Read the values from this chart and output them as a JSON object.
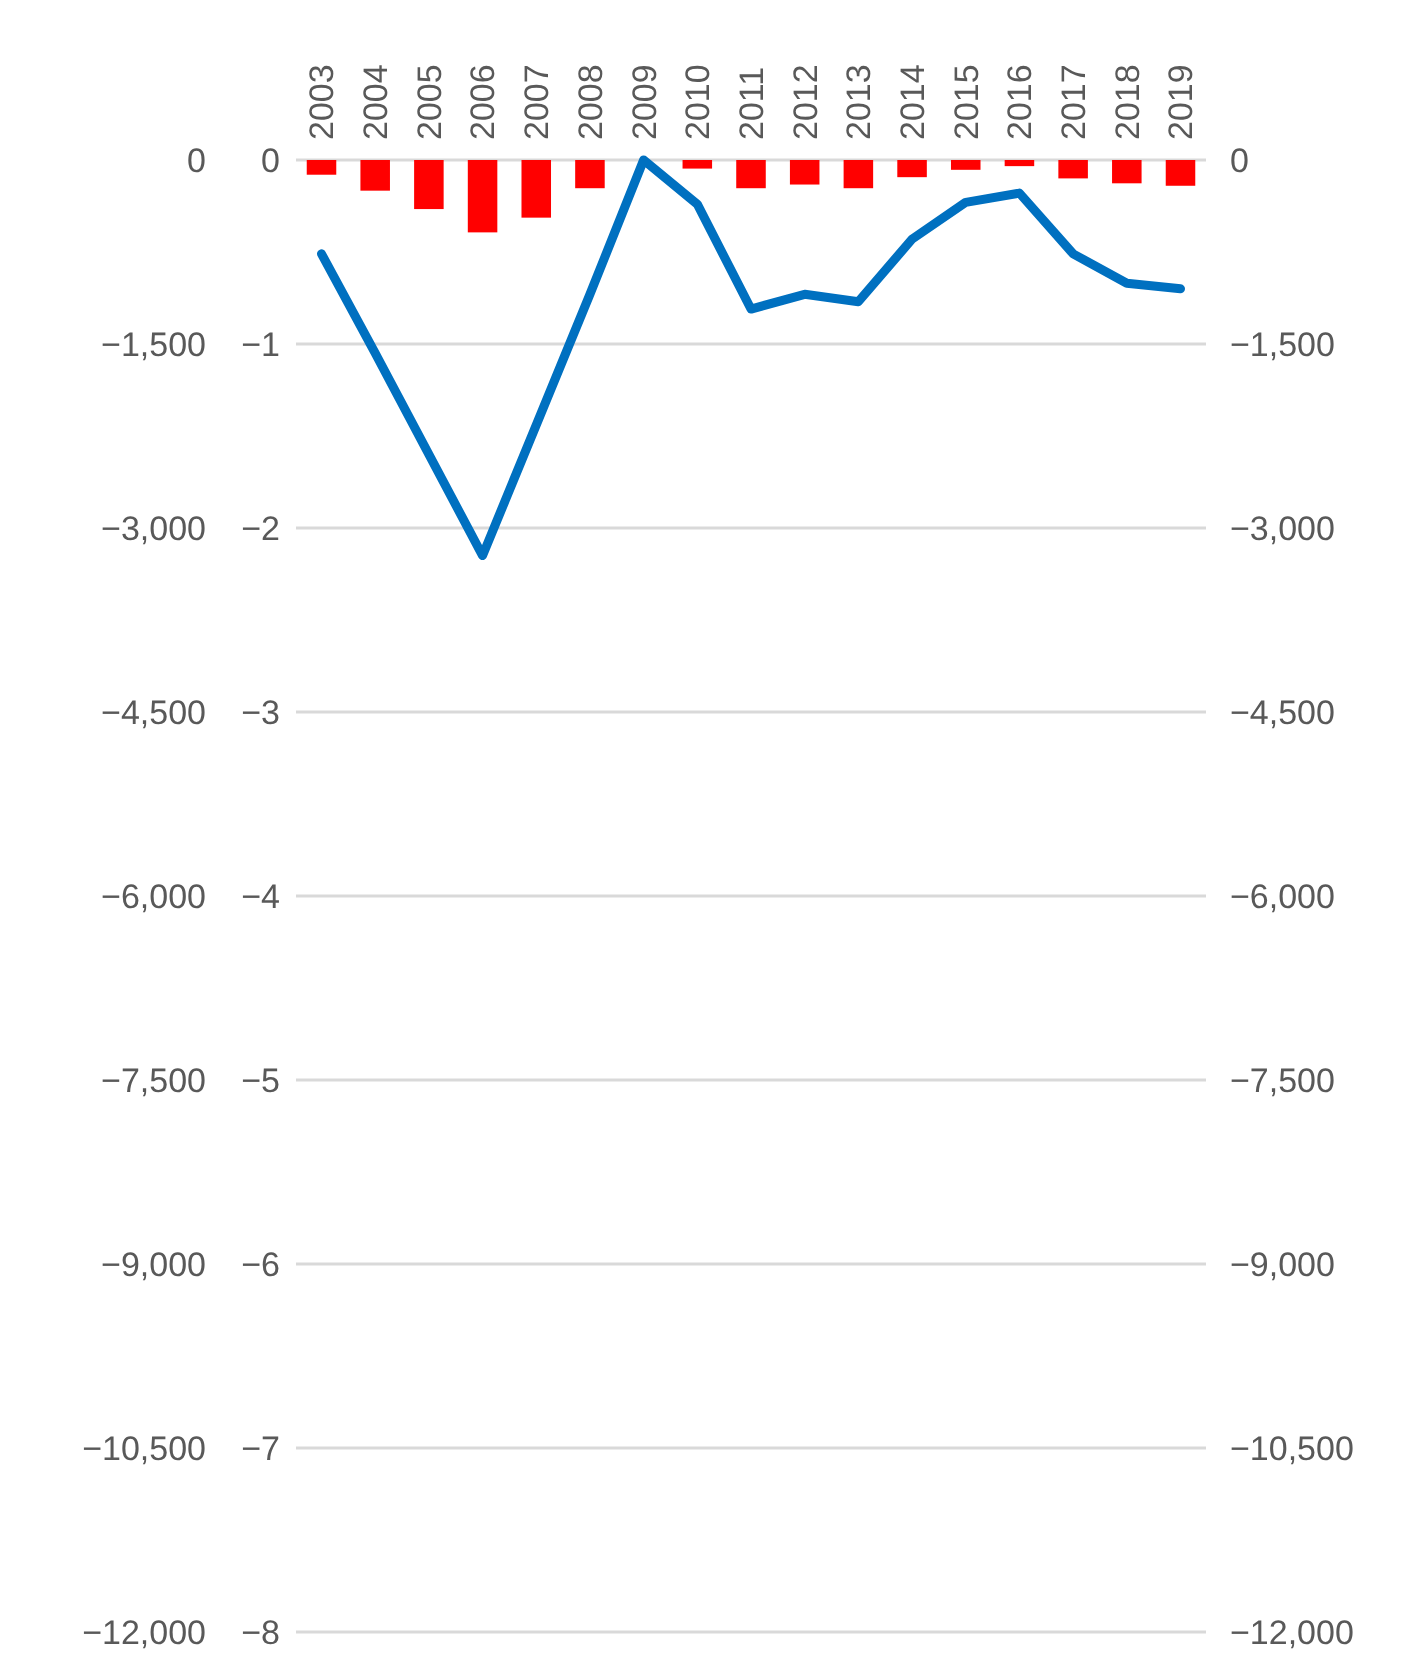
{
  "chart_data": {
    "type": "bar",
    "categories": [
      "2003",
      "2004",
      "2005",
      "2006",
      "2007",
      "2008",
      "2009",
      "2010",
      "2011",
      "2012",
      "2013",
      "2014",
      "2015",
      "2016",
      "2017",
      "2018",
      "2019"
    ],
    "series": [
      {
        "color": "#ff0000",
        "values": [
          -120,
          -250,
          -400,
          -590,
          -470,
          -230,
          0,
          -70,
          -230,
          -200,
          -230,
          -140,
          -80,
          -50,
          -150,
          -190,
          -210
        ]
      },
      {
        "type": "line",
        "axis": "y2",
        "color": "#0070c0",
        "values": [
          -0.51,
          -1.05,
          -1.6,
          -2.15,
          -1.44,
          -0.73,
          0,
          -0.24,
          -0.81,
          -0.73,
          -0.77,
          -0.43,
          -0.23,
          -0.18,
          -0.51,
          -0.67,
          -0.7
        ]
      }
    ],
    "ylim": [
      -12000,
      0
    ],
    "yticks": [
      {
        "value": 0,
        "label": "0"
      },
      {
        "value": -1500,
        "label": "−1,500"
      },
      {
        "value": -3000,
        "label": "−3,000"
      },
      {
        "value": -4500,
        "label": "−4,500"
      },
      {
        "value": -6000,
        "label": "−6,000"
      },
      {
        "value": -7500,
        "label": "−7,500"
      },
      {
        "value": -9000,
        "label": "−9,000"
      },
      {
        "value": -10500,
        "label": "−10,500"
      },
      {
        "value": -12000,
        "label": "−12,000"
      }
    ],
    "y2lim": [
      -8,
      0
    ],
    "y2ticks": [
      {
        "value": 0,
        "label": "0"
      },
      {
        "value": -1,
        "label": "−1"
      },
      {
        "value": -2,
        "label": "−2"
      },
      {
        "value": -3,
        "label": "−3"
      },
      {
        "value": -4,
        "label": "−4"
      },
      {
        "value": -5,
        "label": "−5"
      },
      {
        "value": -6,
        "label": "−6"
      },
      {
        "value": -7,
        "label": "−7"
      },
      {
        "value": -8,
        "label": "−8"
      }
    ],
    "grid": "y",
    "line_style": "solid",
    "marker": "none"
  }
}
